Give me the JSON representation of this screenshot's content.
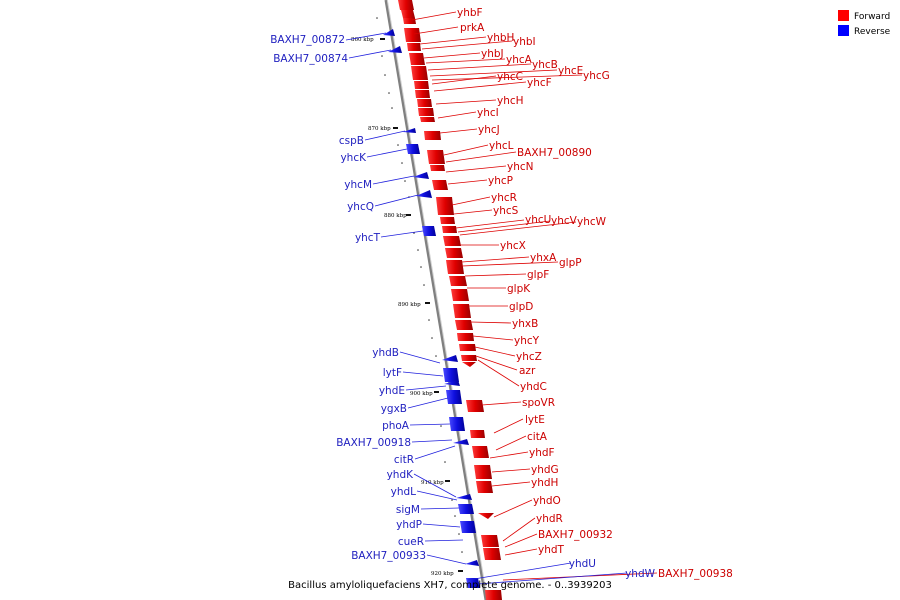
{
  "caption": "Bacillus amyloliquefaciens XH7, complete genome. - 0..3939203",
  "legend": [
    {
      "label": "Forward",
      "color": "#ff0000"
    },
    {
      "label": "Reverse",
      "color": "#0000ff"
    }
  ],
  "axis_color": "#808080",
  "ticks": [
    "860 kbp",
    "870 kbp",
    "880 kbp",
    "890 kbp",
    "900 kbp",
    "910 kbp",
    "920 kbp"
  ],
  "forward_genes": [
    "yhbF",
    "prkA",
    "yhbH",
    "yhbI",
    "yhbJ",
    "yhcA",
    "yhcB",
    "yhcE",
    "yhcG",
    "yhcC",
    "yhcF",
    "yhcH",
    "yhcI",
    "yhcJ",
    "yhcL",
    "BAXH7_00890",
    "yhcN",
    "yhcP",
    "yhcR",
    "yhcS",
    "yhcU",
    "yhcV",
    "yhcW",
    "yhcX",
    "yhxA",
    "glpP",
    "glpF",
    "glpK",
    "glpD",
    "yhxB",
    "yhcY",
    "yhcZ",
    "azr",
    "yhdC",
    "spoVR",
    "lytE",
    "citA",
    "yhdF",
    "yhdG",
    "yhdH",
    "yhdO",
    "yhdR",
    "BAXH7_00932",
    "yhdT",
    "BAXH7_00938"
  ],
  "reverse_genes": [
    "BAXH7_00872",
    "BAXH7_00874",
    "cspB",
    "yhcK",
    "yhcM",
    "yhcQ",
    "yhcT",
    "yhdB",
    "lytF",
    "yhdE",
    "ygxB",
    "phoA",
    "BAXH7_00918",
    "citR",
    "yhdK",
    "yhdL",
    "sigM",
    "yhdP",
    "cueR",
    "BAXH7_00933",
    "yhdU",
    "yhdW"
  ]
}
